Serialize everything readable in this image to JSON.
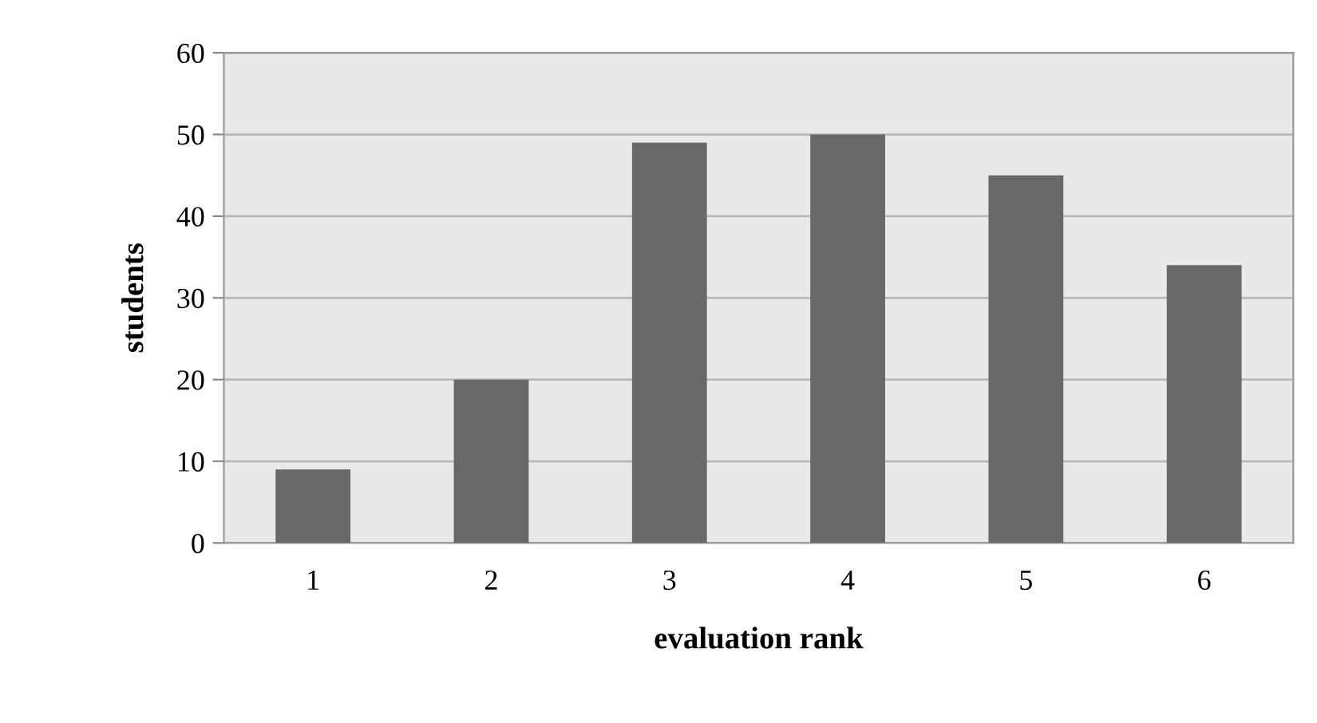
{
  "chart_data": {
    "type": "bar",
    "xlabel": "evaluation rank",
    "ylabel": "students",
    "categories": [
      "1",
      "2",
      "3",
      "4",
      "5",
      "6"
    ],
    "values": [
      9,
      20,
      49,
      50,
      45,
      34
    ],
    "color": "#686868",
    "ylim": [
      0,
      60
    ],
    "yticks": [
      0,
      10,
      20,
      30,
      40,
      50,
      60
    ],
    "grid": "y",
    "legend": false
  }
}
